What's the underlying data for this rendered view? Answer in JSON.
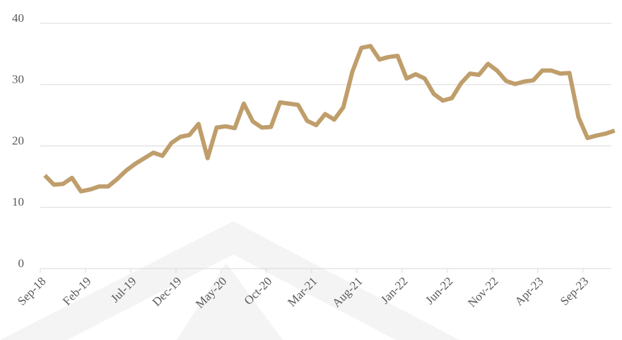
{
  "chart_data": {
    "type": "line",
    "categories": [
      "Sep-18",
      null,
      null,
      null,
      null,
      "Feb-19",
      null,
      null,
      null,
      null,
      "Jul-19",
      null,
      null,
      null,
      null,
      "Dec-19",
      null,
      null,
      null,
      null,
      "May-20",
      null,
      null,
      null,
      null,
      "Oct-20",
      null,
      null,
      null,
      null,
      "Mar-21",
      null,
      null,
      null,
      null,
      "Aug-21",
      null,
      null,
      null,
      null,
      "Jan-22",
      null,
      null,
      null,
      null,
      "Jun-22",
      null,
      null,
      null,
      null,
      "Nov-22",
      null,
      null,
      null,
      null,
      "Apr-23",
      null,
      null,
      null,
      null,
      "Sep-23",
      null,
      null,
      null
    ],
    "values": [
      15.2,
      13.7,
      13.8,
      14.8,
      12.6,
      12.9,
      13.4,
      13.4,
      14.6,
      16.0,
      17.1,
      18.0,
      18.9,
      18.4,
      20.5,
      21.5,
      21.8,
      23.6,
      18.0,
      23.0,
      23.2,
      22.9,
      26.9,
      24.0,
      23.0,
      23.1,
      27.1,
      26.9,
      26.7,
      24.1,
      23.4,
      25.2,
      24.3,
      26.3,
      32.1,
      36.0,
      36.3,
      34.1,
      34.5,
      34.7,
      31.0,
      31.7,
      31.0,
      28.5,
      27.4,
      27.8,
      30.2,
      31.8,
      31.6,
      33.4,
      32.3,
      30.6,
      30.1,
      30.5,
      30.7,
      32.3,
      32.3,
      31.8,
      31.9,
      24.7,
      21.3,
      21.7,
      22.0,
      22.5
    ],
    "color": "#bf9e6b",
    "ylim": [
      0,
      40
    ],
    "yticks": [
      0,
      10,
      20,
      30,
      40
    ],
    "grid": true
  }
}
